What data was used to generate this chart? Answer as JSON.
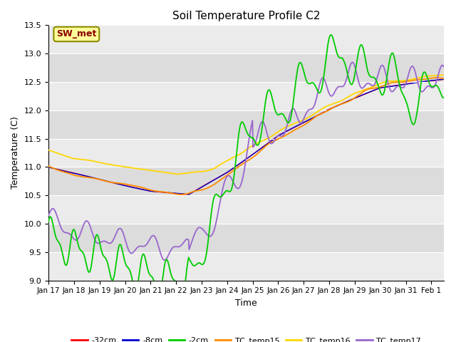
{
  "title": "Soil Temperature Profile C2",
  "xlabel": "Time",
  "ylabel": "Temperature (C)",
  "ylim": [
    9.0,
    13.5
  ],
  "xlim": [
    0,
    15.5
  ],
  "x_tick_labels": [
    "Jan 17",
    "Jan 18",
    "Jan 19",
    "Jan 20",
    "Jan 21",
    "Jan 22",
    "Jan 23",
    "Jan 24",
    "Jan 25",
    "Jan 26",
    "Jan 27",
    "Jan 28",
    "Jan 29",
    "Jan 30",
    "Jan 31",
    "Feb 1"
  ],
  "annotation_text": "SW_met",
  "annotation_color": "#8B0000",
  "annotation_bg": "#FFFF99",
  "annotation_border": "#8B8B00",
  "bg_color": "#E8E8E8",
  "band_color": "#DCDCDC",
  "legend_entries": [
    "-32cm",
    "-8cm",
    "-2cm",
    "TC_temp15",
    "TC_temp16",
    "TC_temp17"
  ],
  "legend_colors": [
    "#FF0000",
    "#0000CD",
    "#00CC00",
    "#FF8C00",
    "#FFD700",
    "#9966CC"
  ],
  "line_colors": {
    "neg32cm": "#FF0000",
    "neg8cm": "#0000CD",
    "neg2cm": "#00CC00",
    "tc15": "#FF8C00",
    "tc16": "#FFD700",
    "tc17": "#9966CC"
  }
}
